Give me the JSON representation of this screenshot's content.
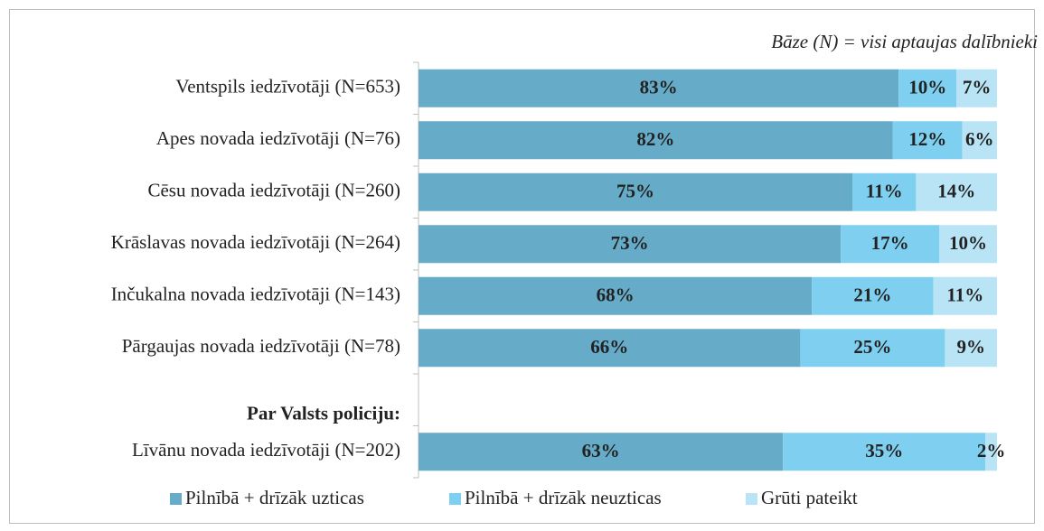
{
  "chart_data": {
    "type": "stacked-bar-horizontal",
    "subtitle": "Bāze (N) = visi aptaujas dalībnieki",
    "categories": [
      "Ventspils iedzīvotāji (N=653)",
      "Apes novada iedzīvotāji (N=76)",
      "Cēsu  novada iedzīvotāji (N=260)",
      "Krāslavas novada iedzīvotāji (N=264)",
      "Inčukalna novada iedzīvotāji (N=143)",
      "Pārgaujas novada iedzīvotāji (N=78)",
      "Par Valsts policiju:",
      "Līvānu novada iedzīvotāji (N=202)"
    ],
    "series": [
      {
        "name": "Pilnībā + drīzāk uzticas",
        "color": "#66acc8",
        "values": [
          83,
          82,
          75,
          73,
          68,
          66,
          null,
          63
        ],
        "value_labels": [
          "83%",
          "82%",
          "75%",
          "73%",
          "68%",
          "66%",
          null,
          "63%"
        ]
      },
      {
        "name": "Pilnībā + drīzāk neuzticas",
        "color": "#7fd0f0",
        "values": [
          10,
          12,
          11,
          17,
          21,
          25,
          null,
          35
        ],
        "value_labels": [
          "10%",
          "12%",
          "11%",
          "17%",
          "21%",
          "25%",
          null,
          "35%"
        ]
      },
      {
        "name": "Grūti pateikt",
        "color": "#b8e4f5",
        "values": [
          7,
          6,
          14,
          10,
          11,
          9,
          null,
          2
        ],
        "value_labels": [
          "7%",
          "6%",
          "14%",
          "10%",
          "11%",
          "9%",
          null,
          "2%"
        ]
      }
    ],
    "xlim": [
      0,
      100
    ],
    "legend": "bottom"
  }
}
